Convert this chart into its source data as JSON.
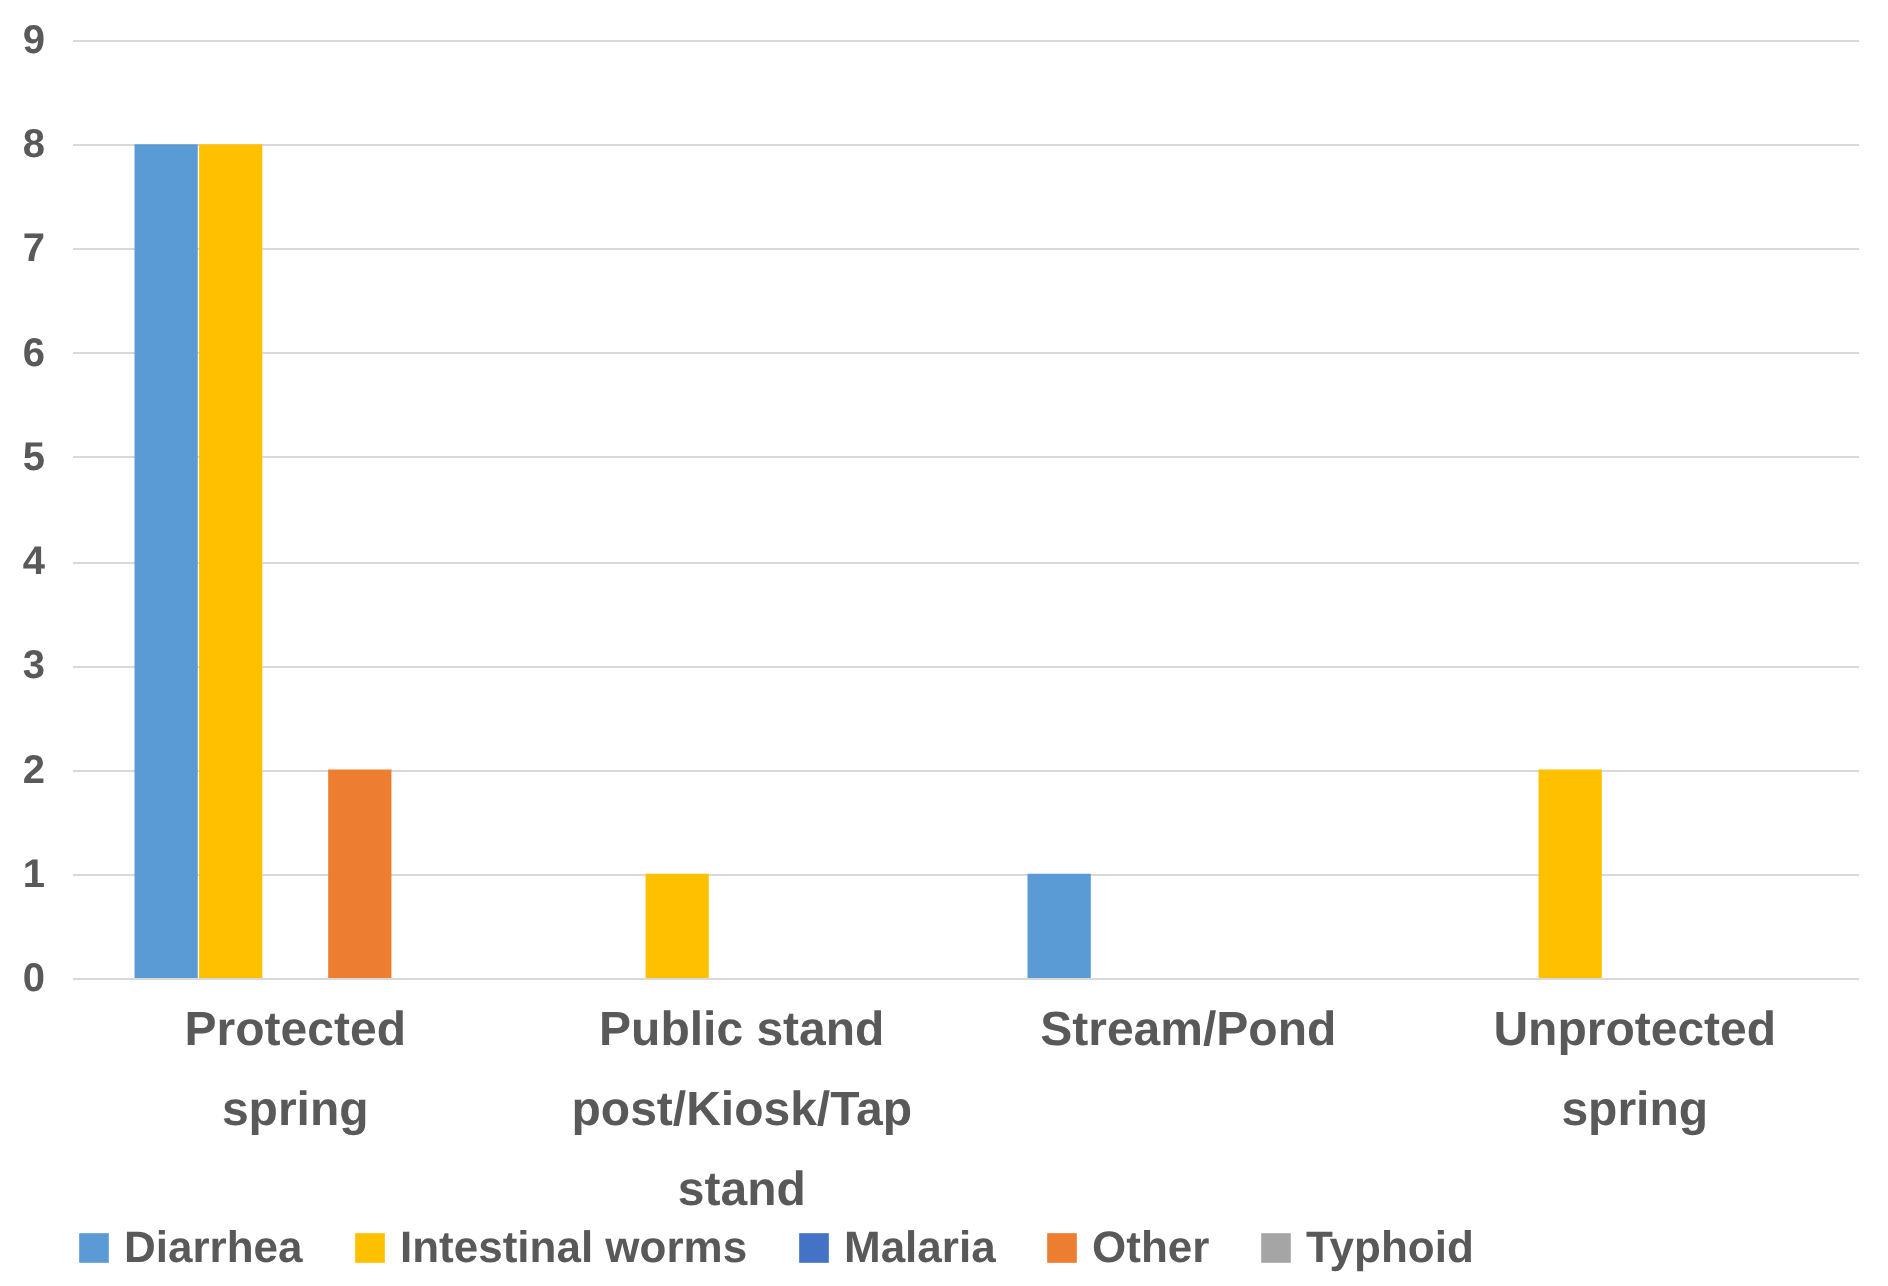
{
  "chart_data": {
    "type": "bar",
    "categories": [
      "Protected spring",
      "Public stand post/Kiosk/Tap stand",
      "Stream/Pond",
      "Unprotected spring"
    ],
    "series": [
      {
        "name": "Diarrhea",
        "color": "#5b9bd5",
        "values": [
          8,
          0,
          1,
          0
        ]
      },
      {
        "name": "Intestinal worms",
        "color": "#ffc000",
        "values": [
          8,
          1,
          0,
          2
        ]
      },
      {
        "name": "Malaria",
        "color": "#4472c4",
        "values": [
          0,
          0,
          0,
          0
        ]
      },
      {
        "name": "Other",
        "color": "#ed7d31",
        "values": [
          2,
          0,
          0,
          0
        ]
      },
      {
        "name": "Typhoid",
        "color": "#a5a5a5",
        "values": [
          0,
          0,
          0,
          0
        ]
      }
    ],
    "ylim": [
      0,
      9
    ],
    "yticks": [
      0,
      1,
      2,
      3,
      4,
      5,
      6,
      7,
      8,
      9
    ],
    "grid": "y",
    "legend": "bottom"
  }
}
